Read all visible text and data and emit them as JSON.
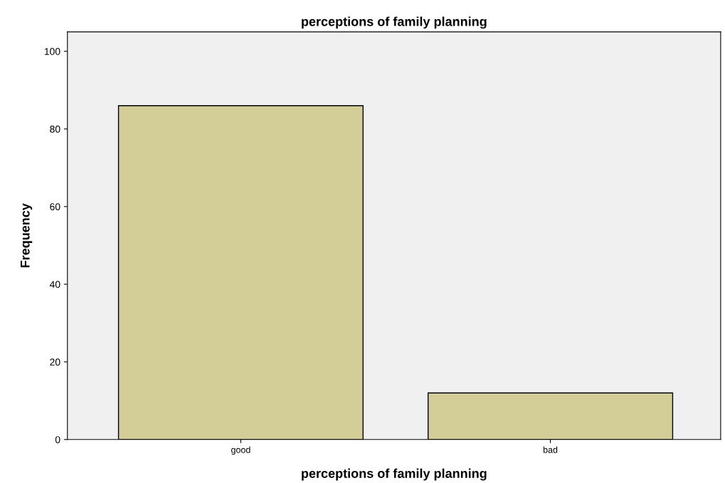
{
  "chart_data": {
    "type": "bar",
    "title": "perceptions of family planning",
    "xlabel": "perceptions of family planning",
    "ylabel": "Frequency",
    "categories": [
      "good",
      "bad"
    ],
    "values": [
      86,
      12
    ],
    "color": "#d3ce97",
    "ylim": [
      0,
      105
    ],
    "yticks": [
      0,
      20,
      40,
      60,
      80,
      100
    ],
    "grid": false,
    "legend": false
  }
}
